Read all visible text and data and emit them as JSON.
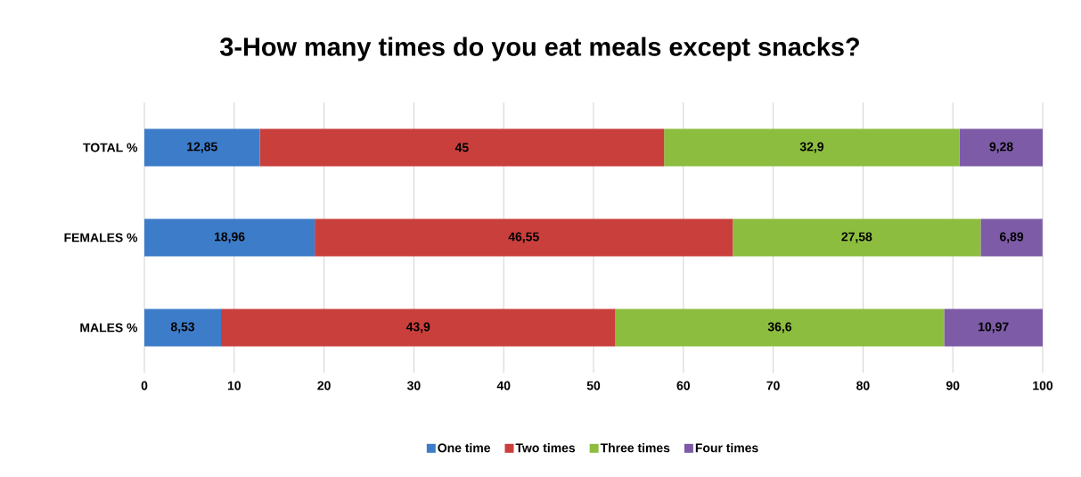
{
  "chart_data": {
    "type": "bar",
    "orientation": "horizontal",
    "stacked": true,
    "title": "3-How many times do you eat meals except snacks?",
    "categories": [
      "TOTAL %",
      "FEMALES %",
      "MALES %"
    ],
    "series": [
      {
        "name": "One time",
        "color": "#3d7cc9",
        "values": [
          12.85,
          18.96,
          8.53
        ],
        "value_labels": [
          "12,85",
          "18,96",
          "8,53"
        ]
      },
      {
        "name": "Two times",
        "color": "#c93f3c",
        "values": [
          45,
          46.55,
          43.9
        ],
        "value_labels": [
          "45",
          "46,55",
          "43,9"
        ]
      },
      {
        "name": "Three times",
        "color": "#8dbd3f",
        "values": [
          32.9,
          27.58,
          36.6
        ],
        "value_labels": [
          "32,9",
          "27,58",
          "36,6"
        ]
      },
      {
        "name": "Four times",
        "color": "#7d5ba6",
        "values": [
          9.28,
          6.89,
          10.97
        ],
        "value_labels": [
          "9,28",
          "6,89",
          "10,97"
        ]
      }
    ],
    "xlim": [
      0,
      100
    ],
    "xticks": [
      0,
      10,
      20,
      30,
      40,
      50,
      60,
      70,
      80,
      90,
      100
    ],
    "grid": "x",
    "legend": "bottom"
  }
}
